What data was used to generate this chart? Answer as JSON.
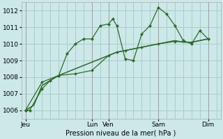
{
  "bg_color": "#cce8e8",
  "grid_color": "#aacccc",
  "line_color": "#2d6a2d",
  "xlabel": "Pression niveau de la mer( hPa )",
  "ylim": [
    1005.5,
    1012.5
  ],
  "xlim": [
    -0.5,
    23.5
  ],
  "yticks": [
    1006,
    1007,
    1008,
    1009,
    1010,
    1011,
    1012
  ],
  "day_labels": [
    "Jeu",
    "",
    "Lun",
    "Ven",
    "",
    "Sam",
    "",
    "Dim"
  ],
  "series1_x": [
    0,
    0.5,
    2,
    3,
    4,
    5,
    6,
    7,
    8,
    9,
    10,
    10.5,
    11,
    12,
    13,
    14,
    15,
    16,
    17,
    18,
    19,
    20,
    21,
    22
  ],
  "series1_y": [
    1006.0,
    1006.0,
    1007.3,
    1007.8,
    1008.1,
    1009.4,
    1010.0,
    1010.3,
    1010.3,
    1011.1,
    1011.2,
    1011.5,
    1011.1,
    1009.1,
    1009.0,
    1010.6,
    1011.1,
    1012.2,
    1011.8,
    1011.1,
    1010.2,
    1010.0,
    1010.8,
    1010.3
  ],
  "series2_x": [
    0,
    1,
    2,
    3,
    4,
    5,
    6,
    7,
    8,
    9,
    10,
    11,
    12,
    13,
    14,
    15,
    16,
    17,
    18,
    19,
    20,
    21,
    22
  ],
  "series2_y": [
    1006.0,
    1006.3,
    1007.5,
    1007.8,
    1008.1,
    1008.3,
    1008.5,
    1008.7,
    1008.9,
    1009.1,
    1009.3,
    1009.5,
    1009.6,
    1009.7,
    1009.8,
    1009.9,
    1010.0,
    1010.1,
    1010.2,
    1010.1,
    1010.1,
    1010.2,
    1010.3
  ],
  "series3_x": [
    0,
    2,
    4,
    6,
    8,
    10,
    11,
    12,
    14,
    16,
    18,
    20,
    22
  ],
  "series3_y": [
    1006.0,
    1007.7,
    1008.1,
    1008.2,
    1008.4,
    1009.3,
    1009.5,
    1009.6,
    1009.8,
    1010.0,
    1010.15,
    1010.1,
    1010.3
  ],
  "xtick_show": [
    0,
    8,
    10,
    16,
    22
  ],
  "xtick_labels": [
    "Jeu",
    "Lun",
    "Ven",
    "Sam",
    "Dim"
  ]
}
